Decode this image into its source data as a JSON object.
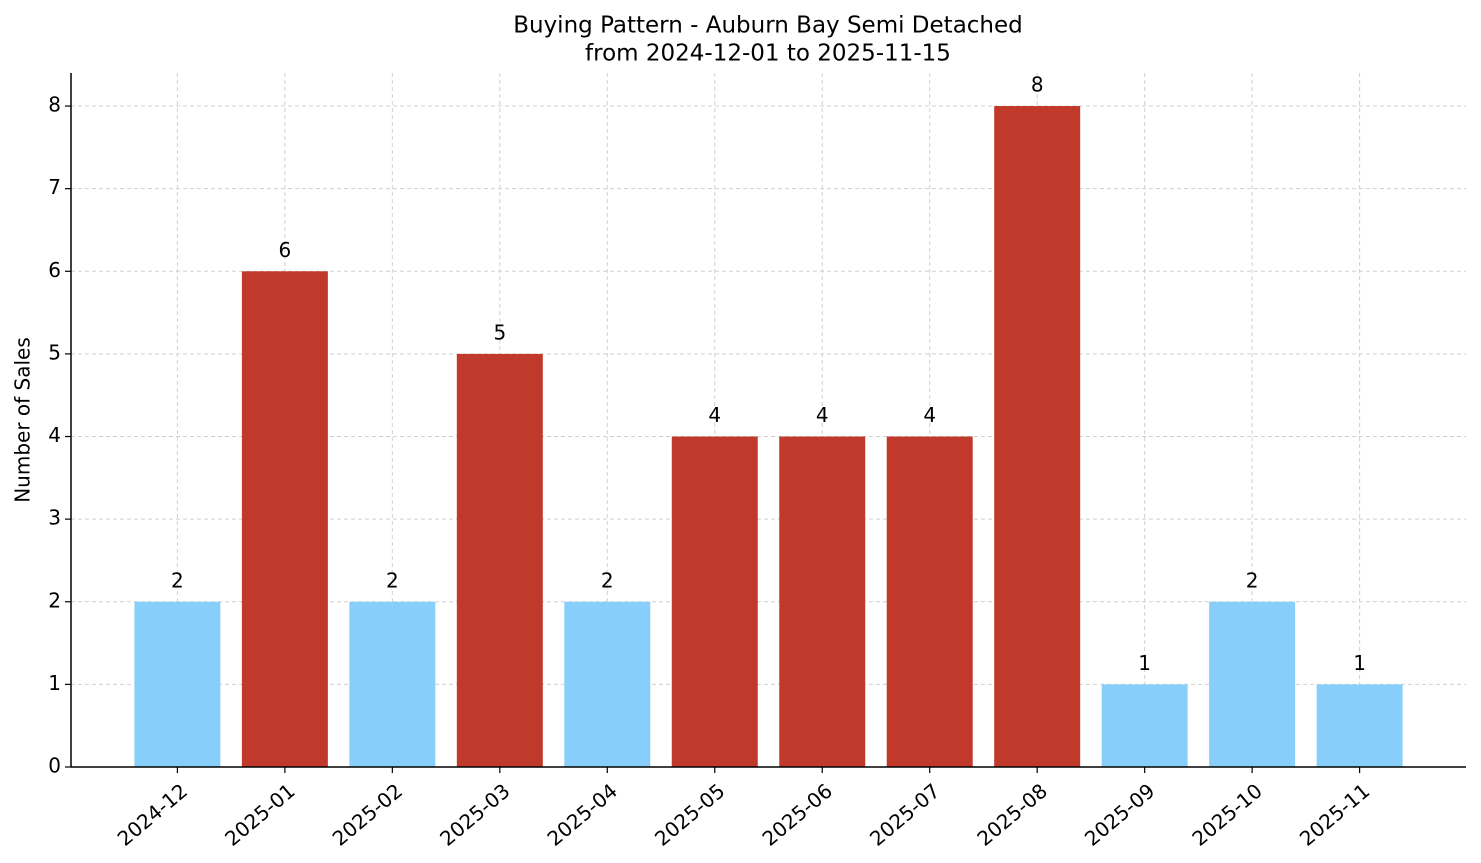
{
  "chart_data": {
    "type": "bar",
    "title": "Buying Pattern - Auburn Bay Semi Detached",
    "subtitle": "from 2024-12-01 to 2025-11-15",
    "y_label": "Number of Sales",
    "categories": [
      "2024-12",
      "2025-01",
      "2025-02",
      "2025-03",
      "2025-04",
      "2025-05",
      "2025-06",
      "2025-07",
      "2025-08",
      "2025-09",
      "2025-10",
      "2025-11"
    ],
    "values": [
      2,
      6,
      2,
      5,
      2,
      4,
      4,
      4,
      8,
      1,
      2,
      1
    ],
    "colors": [
      "#87cefa",
      "#c0392b",
      "#87cefa",
      "#c0392b",
      "#87cefa",
      "#c0392b",
      "#c0392b",
      "#c0392b",
      "#c0392b",
      "#87cefa",
      "#87cefa",
      "#87cefa"
    ],
    "ylim": [
      0,
      8.4
    ],
    "yticks": [
      0,
      1,
      2,
      3,
      4,
      5,
      6,
      7,
      8
    ],
    "grid": true
  }
}
